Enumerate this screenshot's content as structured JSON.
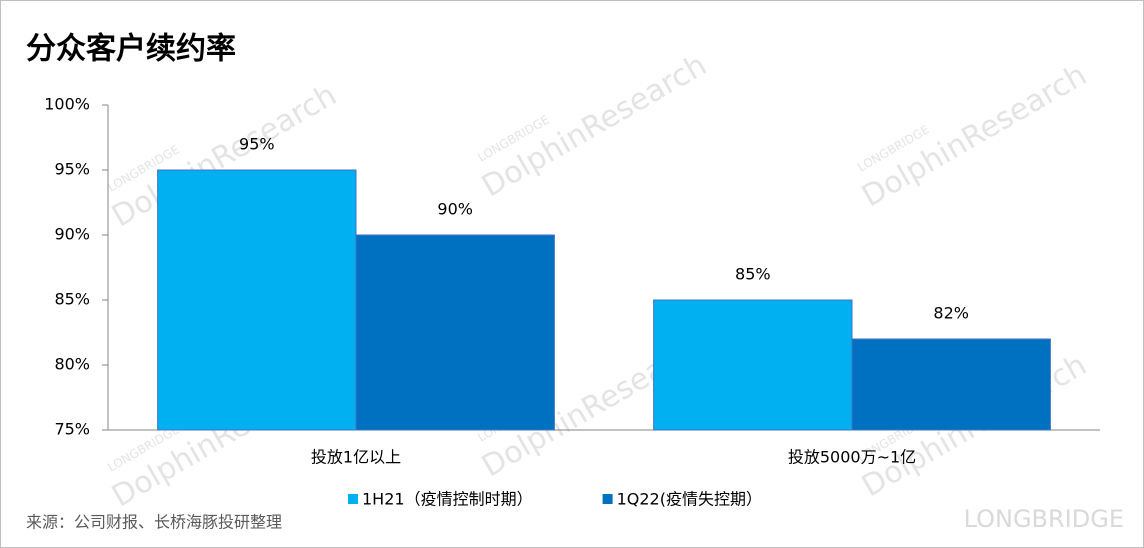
{
  "chart_data": {
    "type": "bar",
    "title": "分众客户续约率",
    "categories": [
      "投放1亿以上",
      "投放5000万~1亿"
    ],
    "series": [
      {
        "name": "1H21（疫情控制时期）",
        "color": "#00b0f0",
        "values": [
          95,
          85
        ],
        "value_labels": [
          "95%",
          "85%"
        ]
      },
      {
        "name": "1Q22(疫情失控期）",
        "color": "#0070c0",
        "values": [
          90,
          82
        ],
        "value_labels": [
          "90%",
          "82%"
        ]
      }
    ],
    "ylim": [
      75,
      100
    ],
    "yticks": [
      {
        "value": 75,
        "label": "75%"
      },
      {
        "value": 80,
        "label": "80%"
      },
      {
        "value": 85,
        "label": "85%"
      },
      {
        "value": 90,
        "label": "90%"
      },
      {
        "value": 95,
        "label": "95%"
      },
      {
        "value": 100,
        "label": "100%"
      }
    ],
    "grid": false,
    "legend": "bottom",
    "source": "来源：公司财报、长桥海豚投研整理",
    "watermark": {
      "brand": "LONGBRIDGE",
      "name": "DolphinResearch"
    }
  }
}
